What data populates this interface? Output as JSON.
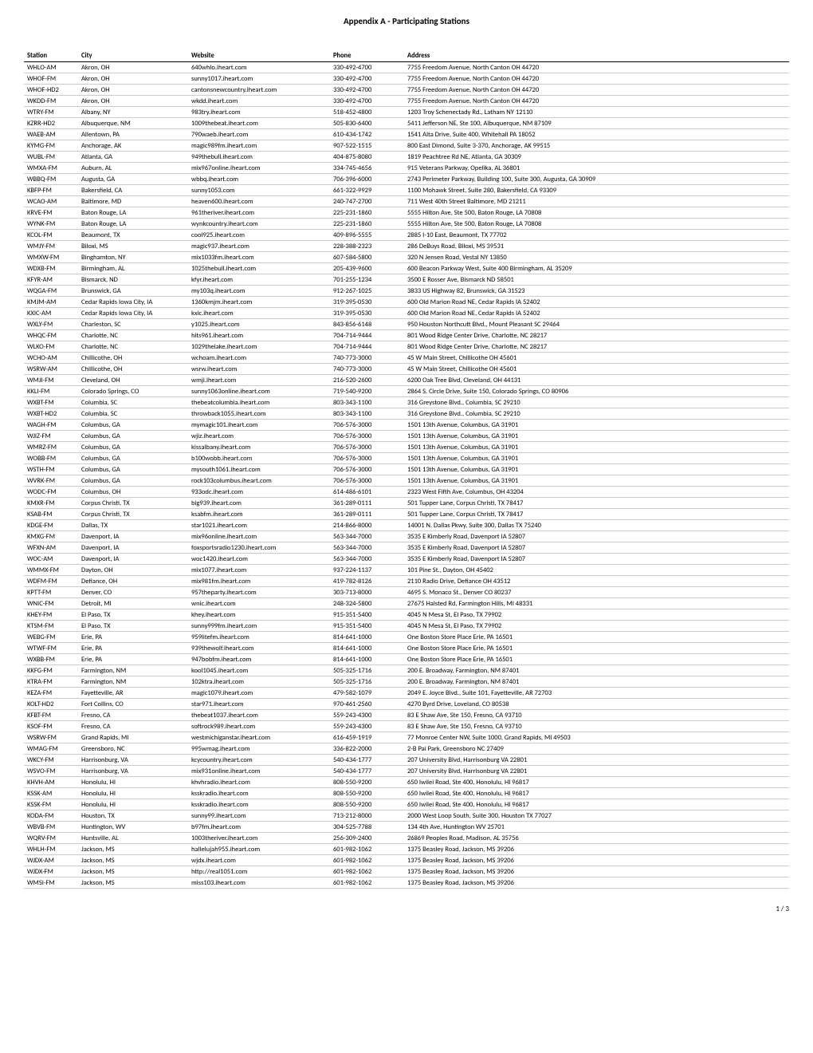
{
  "title": "Appendix A - Participating Stations",
  "page_number": "1 / 3",
  "table": {
    "columns": [
      "Station",
      "City",
      "Website",
      "Phone",
      "Address"
    ],
    "rows": [
      [
        "WHLO-AM",
        "Akron, OH",
        "640whlo.iheart.com",
        "330-492-4700",
        "7755 Freedom Avenue, North Canton OH 44720"
      ],
      [
        "WHOF-FM",
        "Akron, OH",
        "sunny1017.iheart.com",
        "330-492-4700",
        "7755 Freedom Avenue, North Canton OH 44720"
      ],
      [
        "WHOF-HD2",
        "Akron, OH",
        "cantonsnewcountry.iheart.com",
        "330-492-4700",
        "7755 Freedom Avenue, North Canton OH 44720"
      ],
      [
        "WKDD-FM",
        "Akron, OH",
        "wkdd.iheart.com",
        "330-492-4700",
        "7755 Freedom Avenue, North Canton OH 44720"
      ],
      [
        "WTRY-FM",
        "Albany, NY",
        "983try.iheart.com",
        "518-452-4800",
        "1203 Troy Schenectady Rd., Latham NY 12110"
      ],
      [
        "KZRR-HD2",
        "Albuquerque, NM",
        "1009thebeat.iheart.com",
        "505-830-6400",
        "5411 Jefferson NE, Ste 100, Albuquerque, NM 87109"
      ],
      [
        "WAEB-AM",
        "Allentown, PA",
        "790waeb.iheart.com",
        "610-434-1742",
        "1541 Alta Drive, Suite 400, Whitehall PA 18052"
      ],
      [
        "KYMG-FM",
        "Anchorage, AK",
        "magic989fm.iheart.com",
        "907-522-1515",
        "800 East Dimond, Suite 3-370, Anchorage, AK 99515"
      ],
      [
        "WUBL-FM",
        "Atlanta, GA",
        "949thebull.iheart.com",
        "404-875-8080",
        "1819 Peachtree Rd NE, Atlanta, GA 30309"
      ],
      [
        "WMXA-FM",
        "Auburn, AL",
        "mix967online.iheart.com",
        "334-745-4656",
        "915 Veterans Parkway, Opelika, AL 36801"
      ],
      [
        "WBBQ-FM",
        "Augusta, GA",
        "wbbq.iheart.com",
        "706-396-6000",
        "2743 Perimeter Parkway, Building 100, Suite 300, Augusta, GA 30909"
      ],
      [
        "KBFP-FM",
        "Bakersfield, CA",
        "sunny1053.com",
        "661-322-9929",
        "1100 Mohawk Street, Suite 280, Bakersfield, CA 93309"
      ],
      [
        "WCAO-AM",
        "Baltimore, MD",
        "heaven600.iheart.com",
        "240-747-2700",
        "711 West 40th Street Baltimore, MD 21211"
      ],
      [
        "KRVE-FM",
        "Baton Rouge, LA",
        "961theriver.iheart.com",
        "225-231-1860",
        "5555 Hilton Ave, Ste 500, Baton Rouge, LA 70808"
      ],
      [
        "WYNK-FM",
        "Baton Rouge, LA",
        "wynkcountry.iheart.com",
        "225-231-1860",
        "5555 Hilton Ave, Ste 500, Baton Rouge, LA 70808"
      ],
      [
        "KCOL-FM",
        "Beaumont, TX",
        "cool925.iheart.com",
        "409-896-5555",
        "2885 I-10 East, Beaumont, TX 77702"
      ],
      [
        "WMJY-FM",
        "Biloxi, MS",
        "magic937.iheart.com",
        "228-388-2323",
        "286 DeBuys Road, Biloxi, MS 39531"
      ],
      [
        "WMXW-FM",
        "Binghamton, NY",
        "mix1033fm.iheart.com",
        "607-584-5800",
        "320 N Jensen Road, Vestal NY 13850"
      ],
      [
        "WDXB-FM",
        "Birmingham, AL",
        "1025thebull.iheart.com",
        "205-439-9600",
        "600 Beacon Parkway West, Suite 400 Birmingham, AL 35209"
      ],
      [
        "KFYR-AM",
        "Bismarck, ND",
        "kfyr.iheart.com",
        "701-255-1234",
        "3500 E Rosser Ave, Bismarck ND 58501"
      ],
      [
        "WQGA-FM",
        "Brunswick, GA",
        "my103q.iheart.com",
        "912-267-1025",
        "3833 US Highway 82, Brunswick, GA 31523"
      ],
      [
        "KMJM-AM",
        "Cedar Rapids Iowa City, IA",
        "1360kmjm.iheart.com",
        "319-395-0530",
        "600 Old Marion Road NE, Cedar Rapids IA 52402"
      ],
      [
        "KXIC-AM",
        "Cedar Rapids Iowa City, IA",
        "kxic.iheart.com",
        "319-395-0530",
        "600 Old Marion Road NE, Cedar Rapids IA 52402"
      ],
      [
        "WXLY-FM",
        "Charleston, SC",
        "y1025.iheart.com",
        "843-856-6148",
        "950 Houston Northcutt Blvd., Mount Pleasant SC 29464"
      ],
      [
        "WHQC-FM",
        "Charlotte, NC",
        "hits961.iheart.com",
        "704-714-9444",
        "801 Wood Ridge Center Drive, Charlotte, NC 28217"
      ],
      [
        "WLKO-FM",
        "Charlotte, NC",
        "1029thelake.iheart.com",
        "704-714-9444",
        "801 Wood Ridge Center Drive, Charlotte, NC 28217"
      ],
      [
        "WCHO-AM",
        "Chillicothe, OH",
        "wchoam.iheart.com",
        "740-773-3000",
        "45 W Main Street, Chillicothe OH 45601"
      ],
      [
        "WSRW-AM",
        "Chillicothe, OH",
        "wsrw.iheart.com",
        "740-773-3000",
        "45 W Main Street, Chillicothe OH 45601"
      ],
      [
        "WMJI-FM",
        "Cleveland, OH",
        "wmji.iheart.com",
        "216-520-2600",
        "6200 Oak Tree Blvd, Cleveland, OH 44131"
      ],
      [
        "KKLI-FM",
        "Colorado Springs, CO",
        "sunny1063online.iheart.com",
        "719-540-9200",
        "2864 S. Circle Drive, Suite 150, Colorado Springs, CO 80906"
      ],
      [
        "WXBT-FM",
        "Columbia, SC",
        "thebeatcolumbia.iheart.com",
        "803-343-1100",
        "316 Greystone Blvd., Columbia, SC 29210"
      ],
      [
        "WXBT-HD2",
        "Columbia, SC",
        "throwback1055.iheart.com",
        "803-343-1100",
        "316 Greystone Blvd., Columbia, SC 29210"
      ],
      [
        "WAGH-FM",
        "Columbus, GA",
        "mymagic101.iheart.com",
        "706-576-3000",
        "1501 13th Avenue, Columbus, GA 31901"
      ],
      [
        "WJIZ-FM",
        "Columbus, GA",
        "wjiz.iheart.com",
        "706-576-3000",
        "1501 13th Avenue, Columbus, GA 31901"
      ],
      [
        "WMRZ-FM",
        "Columbus, GA",
        "kissalbany.iheart.com",
        "706-576-3000",
        "1501 13th Avenue, Columbus, GA 31901"
      ],
      [
        "WOBB-FM",
        "Columbus, GA",
        "b100wobb.iheart.com",
        "706-576-3000",
        "1501 13th Avenue, Columbus, GA 31901"
      ],
      [
        "WSTH-FM",
        "Columbus, GA",
        "mysouth1061.iheart.com",
        "706-576-3000",
        "1501 13th Avenue, Columbus, GA 31901"
      ],
      [
        "WVRK-FM",
        "Columbus, GA",
        "rock103columbus.iheart.com",
        "706-576-3000",
        "1501 13th Avenue, Columbus, GA 31901"
      ],
      [
        "WODC-FM",
        "Columbus, OH",
        "933odc.iheart.com",
        "614-486-6101",
        "2323 West Fifth Ave, Columbus, OH 43204"
      ],
      [
        "KMXR-FM",
        "Corpus Christi, TX",
        "big939.iheart.com",
        "361-289-0111",
        "501 Tupper Lane, Corpus Christi, TX 78417"
      ],
      [
        "KSAB-FM",
        "Corpus Christi, TX",
        "ksabfm.iheart.com",
        "361-289-0111",
        "501 Tupper Lane, Corpus Christi, TX 78417"
      ],
      [
        "KDGE-FM",
        "Dallas, TX",
        "star1021.iheart.com",
        "214-866-8000",
        "14001 N. Dallas Pkwy, Suite 300, Dallas TX 75240"
      ],
      [
        "KMXG-FM",
        "Davenport, IA",
        "mix96online.iheart.com",
        "563-344-7000",
        "3535 E Kimberly Road, Davenport IA 52807"
      ],
      [
        "WFXN-AM",
        "Davenport, IA",
        "foxsportsradio1230.iheart.com",
        "563-344-7000",
        "3535 E Kimberly Road, Davenport IA 52807"
      ],
      [
        "WOC-AM",
        "Davenport, IA",
        "woc1420.iheart.com",
        "563-344-7000",
        "3535 E Kimberly Road, Davenport IA 52807"
      ],
      [
        "WMMX-FM",
        "Dayton, OH",
        "mix1077.iheart.com",
        "937-224-1137",
        "101 Pine St., Dayton, OH 45402"
      ],
      [
        "WDFM-FM",
        "Defiance, OH",
        "mix981fm.iheart.com",
        "419-782-8126",
        "2110 Radio Drive, Defiance OH 43512"
      ],
      [
        "KPTT-FM",
        "Denver, CO",
        "957theparty.iheart.com",
        "303-713-8000",
        "4695 S. Monaco St., Denver CO 80237"
      ],
      [
        "WNIC-FM",
        "Detroit, MI",
        "wnic.iheart.com",
        "248-324-5800",
        "27675 Halsted Rd, Farmington Hills, MI 48331"
      ],
      [
        "KHEY-FM",
        "El Paso, TX",
        "khey.iheart.com",
        "915-351-5400",
        "4045 N Mesa St, El Paso, TX 79902"
      ],
      [
        "KTSM-FM",
        "El Paso, TX",
        "sunny999fm.iheart.com",
        "915-351-5400",
        "4045 N Mesa St, El Paso, TX 79902"
      ],
      [
        "WEBG-FM",
        "Erie, PA",
        "959litefm.iheart.com",
        "814-641-1000",
        "One Boston Store Place Erie, PA 16501"
      ],
      [
        "WTWF-FM",
        "Erie, PA",
        "939thewolf.iheart.com",
        "814-641-1000",
        "One Boston Store Place Erie, PA 16501"
      ],
      [
        "WXBB-FM",
        "Erie, PA",
        "947bobfm.iheart.com",
        "814-641-1000",
        "One Boston Store Place Erie, PA 16501"
      ],
      [
        "KKFG-FM",
        "Farmington, NM",
        "kool1045.iheart.com",
        "505-325-1716",
        "200 E. Broadway, Farmington, NM 87401"
      ],
      [
        "KTRA-FM",
        "Farmington, NM",
        "102ktra.iheart.com",
        "505-325-1716",
        "200 E. Broadway, Farmington, NM 87401"
      ],
      [
        "KEZA-FM",
        "Fayetteville, AR",
        "magic1079.iheart.com",
        "479-582-1079",
        "2049 E. Joyce Blvd., Suite 101, Fayetteville, AR 72703"
      ],
      [
        "KOLT-HD2",
        "Fort Collins, CO",
        "star971.iheart.com",
        "970-461-2560",
        "4270 Byrd Drive, Loveland, CO 80538"
      ],
      [
        "KFBT-FM",
        "Fresno, CA",
        "thebeat1037.iheart.com",
        "559-243-4300",
        "83 E Shaw Ave, Ste 150, Fresno, CA 93710"
      ],
      [
        "KSOF-FM",
        "Fresno, CA",
        "softrock989.iheart.com",
        "559-243-4300",
        "83 E Shaw Ave, Ste 150, Fresno, CA 93710"
      ],
      [
        "WSRW-FM",
        "Grand Rapids, MI",
        "westmichiganstar.iheart.com",
        "616-459-1919",
        "77 Monroe Center NW, Suite 1000, Grand Rapids, MI 49503"
      ],
      [
        "WMAG-FM",
        "Greensboro, NC",
        "995wmag.iheart.com",
        "336-822-2000",
        "2-B Pai Park, Greensboro NC 27409"
      ],
      [
        "WKCY-FM",
        "Harrisonburg, VA",
        "kcycountry.iheart.com",
        "540-434-1777",
        "207 University Blvd, Harrisonburg VA 22801"
      ],
      [
        "WSVO-FM",
        "Harrisonburg, VA",
        "mix931online.iheart.com",
        "540-434-1777",
        "207 University Blvd, Harrisonburg VA 22801"
      ],
      [
        "KHVH-AM",
        "Honolulu, HI",
        "khvhradio.iheart.com",
        "808-550-9200",
        "650 Iwilei Road, Ste 400, Honolulu, HI 96817"
      ],
      [
        "KSSK-AM",
        "Honolulu, HI",
        "ksskradio.iheart.com",
        "808-550-9200",
        "650 Iwilei Road, Ste 400, Honolulu, HI 96817"
      ],
      [
        "KSSK-FM",
        "Honolulu, HI",
        "ksskradio.iheart.com",
        "808-550-9200",
        "650 Iwilei Road, Ste 400, Honolulu, HI 96817"
      ],
      [
        "KODA-FM",
        "Houston, TX",
        "sunny99.iheart.com",
        "713-212-8000",
        "2000 West Loop South, Suite 300, Houston TX 77027"
      ],
      [
        "WBVB-FM",
        "Huntington, WV",
        "b97fm.iheart.com",
        "304-525-7788",
        "134 4th Ave, Huntington WV 25701"
      ],
      [
        "WQRV-FM",
        "Huntsville, AL",
        "1003theriver.iheart.com",
        "256-309-2400",
        "26869 Peoples Road, Madison, AL 35756"
      ],
      [
        "WHLH-FM",
        "Jackson, MS",
        "hallelujah955.iheart.com",
        "601-982-1062",
        "1375 Beasley Road, Jackson, MS 39206"
      ],
      [
        "WJDX-AM",
        "Jackson, MS",
        "wjdx.iheart.com",
        "601-982-1062",
        "1375 Beasley Road, Jackson, MS 39206"
      ],
      [
        "WJDX-FM",
        "Jackson, MS",
        "http://real1051.com",
        "601-982-1062",
        "1375 Beasley Road, Jackson, MS 39206"
      ],
      [
        "WMSI-FM",
        "Jackson, MS",
        "miss103.iheart.com",
        "601-982-1062",
        "1375 Beasley Road, Jackson, MS 39206"
      ]
    ]
  }
}
